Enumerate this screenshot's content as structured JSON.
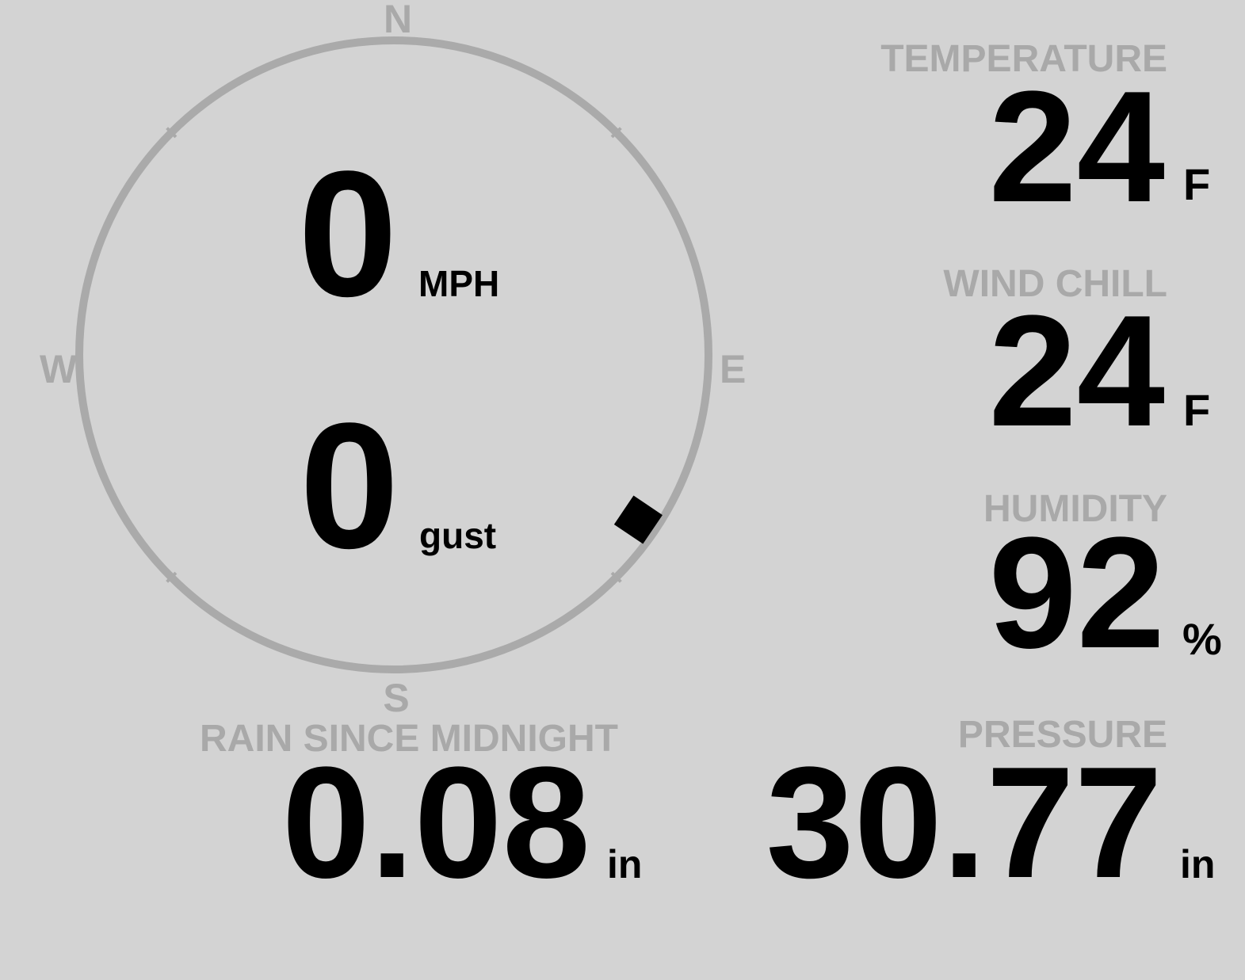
{
  "compass": {
    "north": "N",
    "south": "S",
    "east": "E",
    "west": "W",
    "wind_direction_deg": 124,
    "ring_color": "#aaaaaa",
    "indicator_color": "#000000"
  },
  "wind": {
    "speed": "0",
    "speed_unit": "MPH",
    "gust": "0",
    "gust_unit": "gust"
  },
  "temperature": {
    "label": "TEMPERATURE",
    "value": "24",
    "unit": "F"
  },
  "wind_chill": {
    "label": "WIND CHILL",
    "value": "24",
    "unit": "F"
  },
  "humidity": {
    "label": "HUMIDITY",
    "value": "92",
    "unit": "%"
  },
  "rain": {
    "label": "RAIN SINCE MIDNIGHT",
    "value": "0.08",
    "unit": "in"
  },
  "pressure": {
    "label": "PRESSURE",
    "value": "30.77",
    "unit": "in"
  }
}
